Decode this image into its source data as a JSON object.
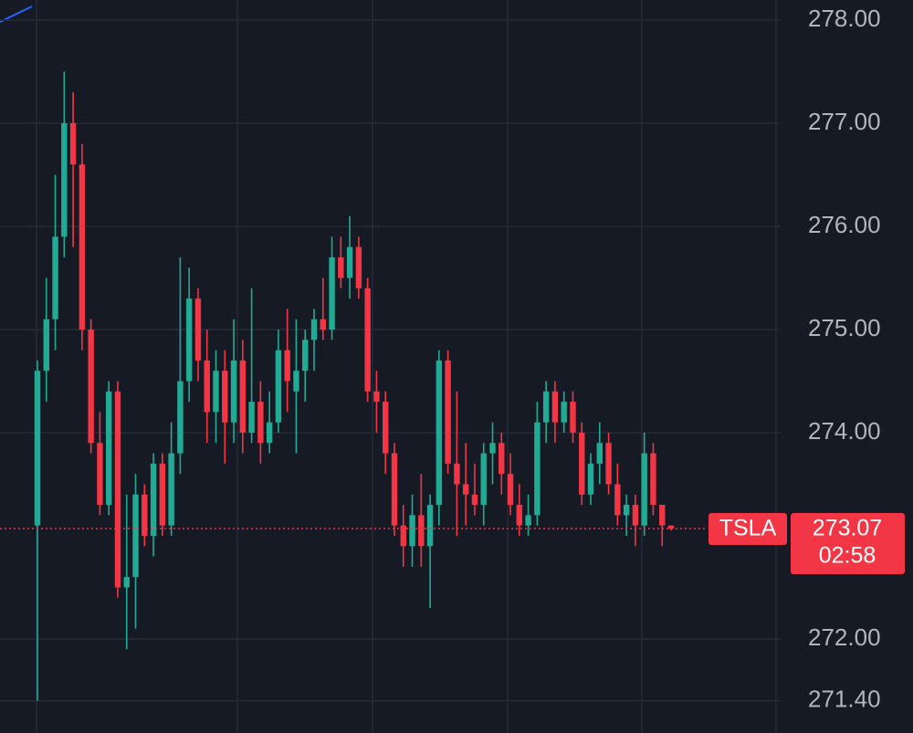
{
  "chart_data": {
    "type": "candlestick",
    "up_color": "#22ab94",
    "down_color": "#f23645",
    "grid": true,
    "ylim": [
      271.088,
      278.195
    ],
    "yticks": [
      {
        "value": 278,
        "label": "278.00"
      },
      {
        "value": 277,
        "label": "277.00"
      },
      {
        "value": 276,
        "label": "276.00"
      },
      {
        "value": 275,
        "label": "275.00"
      },
      {
        "value": 274,
        "label": "274.00"
      },
      {
        "value": 272,
        "label": "272.00"
      },
      {
        "value": 271.4,
        "label": "271.40"
      }
    ],
    "countdown": "02:58",
    "series": [
      {
        "name": "TSLA",
        "open": [
          273.1,
          274.6,
          275.1,
          275.9,
          277.0,
          276.6,
          275.0,
          273.9,
          273.3,
          274.4,
          272.5,
          272.6,
          273.4,
          273.0,
          273.7,
          273.1,
          273.8,
          274.5,
          275.3,
          274.7,
          274.2,
          274.6,
          274.1,
          274.7,
          274.0,
          274.3,
          273.9,
          274.1,
          274.8,
          274.4,
          274.6,
          274.9,
          275.1,
          275.0,
          275.7,
          275.5,
          275.8,
          275.4,
          274.4,
          274.3,
          273.8,
          273.1,
          272.9,
          273.2,
          272.9,
          273.3,
          274.7,
          273.7,
          273.5,
          273.4,
          273.3,
          273.8,
          273.9,
          273.6,
          273.3,
          273.1,
          273.2,
          274.1,
          274.4,
          274.1,
          274.3,
          274.0,
          273.4,
          273.7,
          273.9,
          273.5,
          273.2,
          273.3,
          273.1,
          273.8,
          273.3,
          273.1
        ],
        "high": [
          274.7,
          275.5,
          276.5,
          277.5,
          277.3,
          276.8,
          275.1,
          274.2,
          274.5,
          274.5,
          273.4,
          273.6,
          273.5,
          273.8,
          273.8,
          274.1,
          275.7,
          275.6,
          275.4,
          275.0,
          274.8,
          274.8,
          275.1,
          274.9,
          275.4,
          274.5,
          274.4,
          275.0,
          275.2,
          275.1,
          275.0,
          275.2,
          275.5,
          275.9,
          275.9,
          276.1,
          275.9,
          275.5,
          274.6,
          274.4,
          273.9,
          273.3,
          273.4,
          273.6,
          273.4,
          274.8,
          274.8,
          274.4,
          273.9,
          273.7,
          273.9,
          274.1,
          274.0,
          273.8,
          273.5,
          273.4,
          274.3,
          274.5,
          274.5,
          274.4,
          274.4,
          274.1,
          273.8,
          274.1,
          274.0,
          273.7,
          273.4,
          273.4,
          274.0,
          273.9,
          273.3,
          273.1
        ],
        "low": [
          271.4,
          274.3,
          274.8,
          275.7,
          275.8,
          274.8,
          273.8,
          273.2,
          273.2,
          272.4,
          271.9,
          272.1,
          272.9,
          272.8,
          273.0,
          273.0,
          273.6,
          274.3,
          274.5,
          273.9,
          273.9,
          273.7,
          273.9,
          273.8,
          273.9,
          273.7,
          273.8,
          274.0,
          274.2,
          273.8,
          274.3,
          274.6,
          274.9,
          274.9,
          275.4,
          275.3,
          275.3,
          274.3,
          274.0,
          273.6,
          273.0,
          272.7,
          272.7,
          272.7,
          272.3,
          273.1,
          273.6,
          273.0,
          273.1,
          273.2,
          273.1,
          273.5,
          273.4,
          273.2,
          273.0,
          273.0,
          273.1,
          273.9,
          273.9,
          274.0,
          273.9,
          273.3,
          273.3,
          273.5,
          273.4,
          273.1,
          273.0,
          272.9,
          273.0,
          273.2,
          272.9,
          273.05
        ],
        "close": [
          274.6,
          275.1,
          275.9,
          277.0,
          276.6,
          275.0,
          273.9,
          273.3,
          274.4,
          272.5,
          272.6,
          273.4,
          273.0,
          273.7,
          273.1,
          273.8,
          274.5,
          275.3,
          274.7,
          274.2,
          274.6,
          274.1,
          274.7,
          274.0,
          274.3,
          273.9,
          274.1,
          274.8,
          274.5,
          274.6,
          274.9,
          275.1,
          275.0,
          275.7,
          275.5,
          275.8,
          275.4,
          274.4,
          274.3,
          273.8,
          273.1,
          272.9,
          273.2,
          272.9,
          273.3,
          274.7,
          273.7,
          273.5,
          273.4,
          273.3,
          273.8,
          273.9,
          273.6,
          273.3,
          273.1,
          273.2,
          274.1,
          274.4,
          274.1,
          274.3,
          274.0,
          273.4,
          273.7,
          273.9,
          273.5,
          273.2,
          273.3,
          273.1,
          273.8,
          273.3,
          273.1,
          273.07
        ]
      }
    ]
  }
}
